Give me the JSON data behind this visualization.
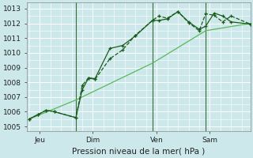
{
  "title": "Pression niveau de la mer( hPa )",
  "bg_color": "#cce8ea",
  "grid_color": "#ffffff",
  "line_color_dark": "#1a5c1a",
  "line_color_light": "#5ab85a",
  "ylim": [
    1004.7,
    1013.4
  ],
  "yticks": [
    1005,
    1006,
    1007,
    1008,
    1009,
    1010,
    1011,
    1012,
    1013
  ],
  "xlim": [
    -0.1,
    10.4
  ],
  "xtick_labels": [
    "Jeu",
    "Dim",
    "Ven",
    "Sam"
  ],
  "xtick_positions": [
    0.5,
    3.0,
    6.0,
    8.5
  ],
  "vline_positions": [
    2.2,
    5.8,
    8.3
  ],
  "line_thin_x": [
    0,
    2.2,
    5.8,
    8.3,
    10.4
  ],
  "line_thin_y": [
    1005.5,
    1006.8,
    1009.3,
    1011.5,
    1012.0
  ],
  "line_dotted_x": [
    0,
    0.4,
    0.8,
    1.2,
    2.2,
    2.5,
    2.8,
    3.1,
    3.8,
    4.4,
    5.0,
    5.8,
    6.1,
    6.5,
    7.0,
    7.5,
    8.0,
    8.3,
    8.7,
    9.1,
    9.5,
    10.4
  ],
  "line_dotted_y": [
    1005.5,
    1005.8,
    1006.1,
    1006.0,
    1005.6,
    1007.8,
    1008.3,
    1008.2,
    1009.6,
    1010.2,
    1011.2,
    1012.2,
    1012.5,
    1012.35,
    1012.8,
    1012.05,
    1011.5,
    1012.65,
    1012.55,
    1012.1,
    1012.5,
    1011.95
  ],
  "line_solid_x": [
    0,
    0.4,
    0.8,
    1.2,
    2.2,
    2.5,
    2.8,
    3.1,
    3.8,
    4.4,
    5.0,
    5.8,
    6.1,
    6.5,
    7.0,
    7.5,
    8.0,
    8.3,
    8.7,
    9.1,
    9.5,
    10.4
  ],
  "line_solid_y": [
    1005.5,
    1005.8,
    1006.1,
    1006.0,
    1005.6,
    1007.5,
    1008.3,
    1008.25,
    1010.3,
    1010.5,
    1011.15,
    1012.2,
    1012.2,
    1012.3,
    1012.8,
    1012.1,
    1011.6,
    1011.8,
    1012.7,
    1012.5,
    1012.1,
    1011.95
  ]
}
